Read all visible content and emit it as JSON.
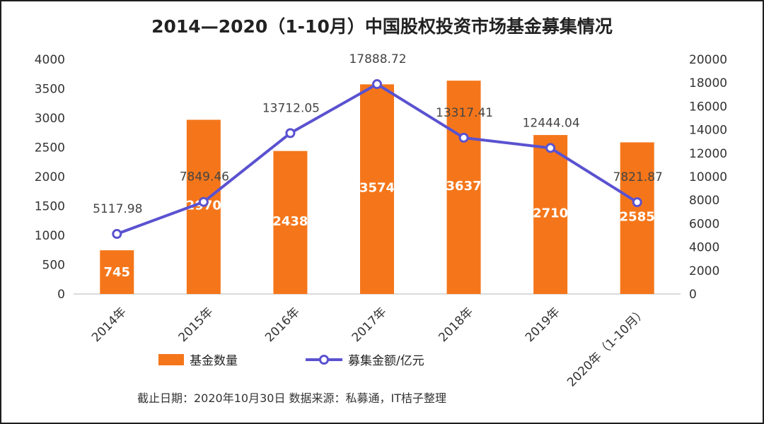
{
  "chart_data": {
    "type": "bar+line",
    "title": "2014—2020（1-10月）中国股权投资市场基金募集情况",
    "categories": [
      "2014年",
      "2015年",
      "2016年",
      "2017年",
      "2018年",
      "2019年",
      "2020年（1-10月）"
    ],
    "series": [
      {
        "name": "基金数量",
        "type": "bar",
        "axis": "left",
        "values": [
          745,
          2970,
          2438,
          3574,
          3637,
          2710,
          2585
        ],
        "color": "#F5761A"
      },
      {
        "name": "募集金额/亿元",
        "type": "line",
        "axis": "right",
        "values": [
          5117.98,
          7849.46,
          13712.05,
          17888.72,
          13317.41,
          12444.04,
          7821.87
        ],
        "color": "#5A52D0"
      }
    ],
    "y_left": {
      "min": 0,
      "max": 4000,
      "ticks": [
        0,
        500,
        1000,
        1500,
        2000,
        2500,
        3000,
        3500,
        4000
      ]
    },
    "y_right": {
      "min": 0,
      "max": 20000,
      "ticks": [
        0,
        2000,
        4000,
        6000,
        8000,
        10000,
        12000,
        14000,
        16000,
        18000,
        20000
      ]
    },
    "grid": false,
    "legend_position": "bottom",
    "line_labels": [
      "5117.98",
      "7849.46",
      "13712.05",
      "17888.72",
      "13317.41",
      "12444.04",
      "7821.87"
    ],
    "footer": "截止日期：2020年10月30日     数据来源：私募通，IT桔子整理"
  }
}
